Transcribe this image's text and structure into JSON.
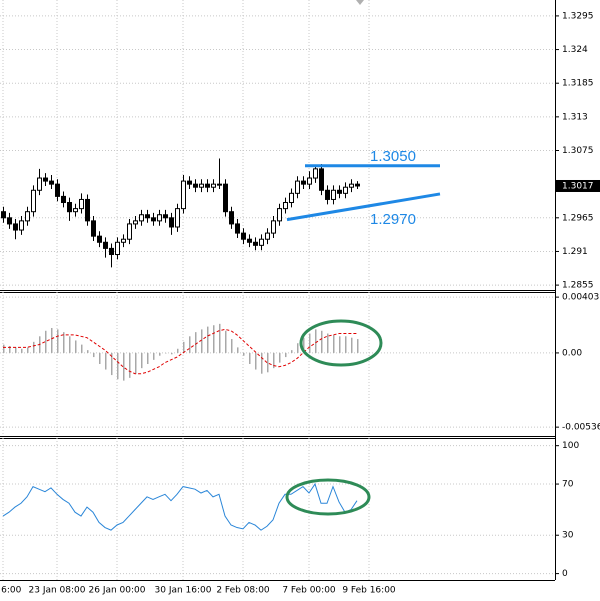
{
  "chart_data": [
    {
      "type": "candlestick",
      "categories": [
        "6:00",
        null,
        null,
        null,
        null,
        null,
        null,
        null,
        null,
        "23 Jan 08:00",
        null,
        null,
        null,
        null,
        null,
        null,
        null,
        null,
        null,
        "26 Jan 00:00",
        null,
        null,
        null,
        null,
        null,
        null,
        null,
        null,
        null,
        null,
        "30 Jan 16:00",
        null,
        null,
        null,
        null,
        null,
        null,
        null,
        null,
        null,
        "2 Feb 08:00",
        null,
        null,
        null,
        null,
        null,
        null,
        null,
        null,
        null,
        null,
        "7 Feb 00:00",
        null,
        null,
        null,
        null,
        null,
        null,
        null,
        null,
        null,
        "9 Feb 16:00"
      ],
      "open": [
        1.2975,
        1.2965,
        1.2955,
        1.2945,
        1.296,
        1.2975,
        1.301,
        1.303,
        1.3025,
        1.302,
        1.3,
        1.299,
        1.2975,
        1.298,
        1.2995,
        1.296,
        1.2935,
        1.2925,
        1.2915,
        1.2905,
        1.2925,
        1.293,
        1.2955,
        1.296,
        1.297,
        1.2965,
        1.296,
        1.297,
        1.2965,
        1.295,
        1.298,
        1.3025,
        1.302,
        1.3015,
        1.302,
        1.3015,
        1.302,
        1.302,
        1.2975,
        1.2955,
        1.294,
        1.293,
        1.2925,
        1.292,
        1.293,
        1.294,
        1.296,
        1.298,
        1.299,
        1.3005,
        1.3025,
        1.302,
        1.303,
        1.3045,
        1.301,
        1.2995,
        1.301,
        1.3005,
        1.3015,
        1.302,
        null,
        null
      ],
      "high": [
        1.2983,
        1.2973,
        1.2963,
        1.2968,
        1.2983,
        1.3018,
        1.3045,
        1.3038,
        1.3035,
        1.3028,
        1.3008,
        1.2998,
        1.2988,
        1.3005,
        1.3003,
        1.2968,
        1.2943,
        1.2933,
        1.2923,
        1.2933,
        1.2938,
        1.2963,
        1.2968,
        1.2978,
        1.2978,
        1.2973,
        1.2978,
        1.2978,
        1.2973,
        1.2988,
        1.3035,
        1.3033,
        1.3028,
        1.3028,
        1.3028,
        1.3028,
        1.3062,
        1.3028,
        1.2983,
        1.2963,
        1.2948,
        1.2938,
        1.2933,
        1.2938,
        1.2948,
        1.2968,
        1.2988,
        1.2998,
        1.3013,
        1.3033,
        1.3033,
        1.3041,
        1.305,
        1.3053,
        1.3018,
        1.3018,
        1.3018,
        1.3023,
        1.3028,
        1.3025,
        null,
        null
      ],
      "low": [
        1.2957,
        1.2947,
        1.293,
        1.2937,
        1.2952,
        1.2967,
        1.3002,
        1.3017,
        1.3012,
        1.2992,
        1.2982,
        1.296,
        1.2967,
        1.2972,
        1.2952,
        1.2927,
        1.2917,
        1.29,
        1.2884,
        1.2897,
        1.2917,
        1.2922,
        1.2947,
        1.2952,
        1.2957,
        1.2952,
        1.2952,
        1.2957,
        1.2937,
        1.2942,
        1.2972,
        1.3012,
        1.3007,
        1.3007,
        1.3007,
        1.3007,
        1.3012,
        1.2967,
        1.2947,
        1.2932,
        1.2922,
        1.2917,
        1.2912,
        1.2912,
        1.2922,
        1.2932,
        1.2952,
        1.2972,
        1.2982,
        1.2997,
        1.3012,
        1.3012,
        1.3022,
        1.3002,
        1.2987,
        1.2987,
        1.2997,
        1.2997,
        1.3007,
        1.3012,
        null,
        null
      ],
      "close": [
        1.2965,
        1.2955,
        1.2945,
        1.296,
        1.2975,
        1.301,
        1.303,
        1.3025,
        1.302,
        1.3,
        1.299,
        1.2975,
        1.298,
        1.2995,
        1.296,
        1.2935,
        1.2925,
        1.2915,
        1.2905,
        1.2925,
        1.293,
        1.2955,
        1.296,
        1.297,
        1.2965,
        1.296,
        1.297,
        1.2965,
        1.295,
        1.298,
        1.3025,
        1.302,
        1.3015,
        1.302,
        1.3015,
        1.302,
        1.302,
        1.2975,
        1.2955,
        1.294,
        1.293,
        1.2925,
        1.292,
        1.293,
        1.294,
        1.296,
        1.298,
        1.299,
        1.3005,
        1.3025,
        1.302,
        1.303,
        1.3045,
        1.301,
        1.2995,
        1.301,
        1.3005,
        1.3015,
        1.302,
        1.3017,
        null,
        null
      ],
      "up_color": "#ffffff",
      "down_color": "#000000",
      "ylim": [
        1.2847,
        1.3321
      ],
      "yticks": [
        1.3295,
        1.324,
        1.3185,
        1.313,
        1.3075,
        1.2965,
        1.291,
        1.2855
      ],
      "current_price": 1.3017,
      "grid": true,
      "annotations": [
        {
          "label": "1.3050",
          "values": [
            1.305,
            1.305
          ],
          "color": "#1e88e5"
        },
        {
          "label": "1.2970",
          "values": [
            1.2962,
            1.3004
          ],
          "color": "#1e88e5"
        }
      ]
    },
    {
      "type": "macd",
      "ylim": [
        -0.006,
        0.0044
      ],
      "yticks": [
        0.00403,
        {
          "value": 0,
          "label": "0.00"
        },
        -0.00536
      ],
      "grid": true,
      "series": [
        {
          "type": "bar",
          "color": "#a8a8a8",
          "values": [
            0.0006,
            0.0005,
            0.0004,
            0.0003,
            0.0004,
            0.0008,
            0.0012,
            0.0016,
            0.0018,
            0.0017,
            0.0015,
            0.0012,
            0.0009,
            0.0006,
            0.0002,
            -0.0003,
            -0.0008,
            -0.0012,
            -0.0016,
            -0.0019,
            -0.002,
            -0.0018,
            -0.0015,
            -0.0011,
            -0.0008,
            -0.0005,
            -0.0002,
            0,
            -0.0001,
            0.0003,
            0.0008,
            0.0012,
            0.0015,
            0.0017,
            0.0019,
            0.002,
            0.0021,
            0.0016,
            0.001,
            0.0004,
            -0.0002,
            -0.0008,
            -0.0012,
            -0.0015,
            -0.0014,
            -0.0011,
            -0.0007,
            -0.0003,
            0.0002,
            0.0007,
            0.0011,
            0.0014,
            0.0017,
            0.0016,
            0.0014,
            0.0013,
            0.0012,
            0.0012,
            0.0011,
            0.001,
            null,
            null
          ]
        },
        {
          "type": "line",
          "color": "#e00000",
          "dashed": true,
          "values": [
            0.0004,
            0.0004,
            0.0004,
            0.0004,
            0.0004,
            0.0005,
            0.0006,
            0.0008,
            0.001,
            0.0012,
            0.0013,
            0.0013,
            0.0013,
            0.0012,
            0.0011,
            0.0008,
            0.0005,
            0.0002,
            -0.0002,
            -0.0006,
            -0.001,
            -0.0013,
            -0.0015,
            -0.0015,
            -0.0014,
            -0.0012,
            -0.001,
            -0.0007,
            -0.0005,
            -0.0003,
            0,
            0.0003,
            0.0006,
            0.0009,
            0.0012,
            0.0014,
            0.0016,
            0.0017,
            0.0016,
            0.0013,
            0.0009,
            0.0005,
            0.0001,
            -0.0003,
            -0.0007,
            -0.0009,
            -0.001,
            -0.0009,
            -0.0007,
            -0.0004,
            0,
            0.0004,
            0.0007,
            0.001,
            0.0012,
            0.0013,
            0.0014,
            0.0014,
            0.0014,
            0.0014,
            null,
            null
          ]
        }
      ]
    },
    {
      "type": "line",
      "ylim": [
        -5,
        106
      ],
      "yticks": [
        100,
        70,
        30,
        0
      ],
      "grid": true,
      "color": "#2a86d8",
      "values": [
        45,
        48,
        52,
        55,
        60,
        68,
        66,
        64,
        67,
        62,
        58,
        55,
        48,
        45,
        52,
        48,
        40,
        36,
        34,
        38,
        40,
        45,
        50,
        55,
        60,
        58,
        60,
        62,
        57,
        62,
        68,
        67,
        66,
        63,
        65,
        60,
        62,
        45,
        38,
        36,
        35,
        40,
        38,
        34,
        37,
        42,
        55,
        62,
        62,
        65,
        68,
        63,
        70,
        55,
        55,
        68,
        56,
        48,
        50,
        57,
        null,
        null
      ]
    }
  ]
}
